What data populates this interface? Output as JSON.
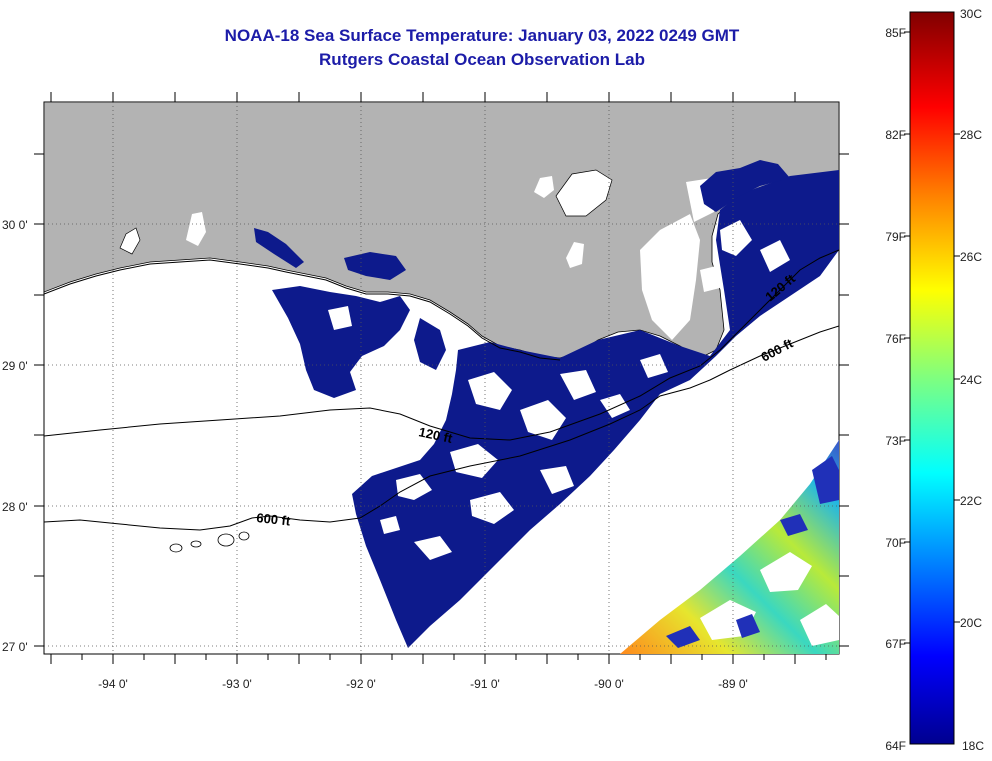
{
  "title": {
    "line1": "NOAA-18 Sea Surface Temperature:  January 03, 2022 0249 GMT",
    "line2": "Rutgers Coastal Ocean Observation Lab"
  },
  "map": {
    "lon_labels": [
      "-94 0'",
      "-93 0'",
      "-92 0'",
      "-91 0'",
      "-90 0'",
      "-89 0'"
    ],
    "lat_labels": [
      "30 0'",
      "29 0'",
      "28 0'",
      "27 0'"
    ],
    "contour_labels": [
      "600 ft",
      "120 ft",
      "600 ft",
      "120 ft"
    ],
    "land_color": "#b3b3b3",
    "cold_water_color": "#0d1a8c"
  },
  "colorbar": {
    "fahrenheit_labels": [
      "85F",
      "82F",
      "79F",
      "76F",
      "73F",
      "70F",
      "67F",
      "64F"
    ],
    "celsius_labels": [
      "30C",
      "28C",
      "26C",
      "24C",
      "22C",
      "20C",
      "18C"
    ]
  }
}
